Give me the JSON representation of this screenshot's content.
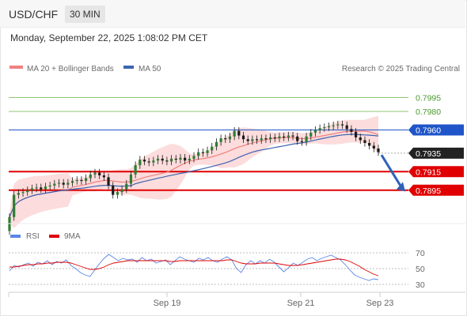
{
  "header": {
    "symbol": "USD/CHF",
    "timeframe": "30 MIN"
  },
  "timestamp": "Monday, September 22, 2025 1:08:02 PM CET",
  "legend": {
    "ma20": "MA 20 + Bollinger Bands",
    "ma50": "MA 50",
    "credit": "Research © 2025 Trading Central"
  },
  "rsi_legend": {
    "rsi": "RSI",
    "ma": "9MA"
  },
  "colors": {
    "ma20": "#f08080",
    "bollinger": "#fbd6d6",
    "ma50": "#3d64b0",
    "resistance": "#7fbf5f",
    "pivot": "#1f55c8",
    "support": "#e00000",
    "current": "#222222",
    "rsi": "#5b86e5",
    "rsi_ma": "#e00000",
    "candle": "#2e7d32",
    "arrow": "#2f62b8"
  },
  "chart_data": {
    "type": "candlestick",
    "price_ylim": [
      0.7859,
      0.8015
    ],
    "x_ticks": [
      "Sep 19",
      "Sep 21",
      "Sep 23"
    ],
    "levels": [
      {
        "value": 0.7995,
        "label": "0.7995",
        "kind": "resistance"
      },
      {
        "value": 0.798,
        "label": "0.7980",
        "kind": "resistance"
      },
      {
        "value": 0.796,
        "label": "0.7960",
        "kind": "pivot"
      },
      {
        "value": 0.7935,
        "label": "0.7935",
        "kind": "current"
      },
      {
        "value": 0.7915,
        "label": "0.7915",
        "kind": "support"
      },
      {
        "value": 0.7895,
        "label": "0.7895",
        "kind": "support"
      }
    ],
    "forecast_arrow": {
      "from": 0.7933,
      "to": 0.7897
    },
    "price": [
      0.7866,
      0.789,
      0.7892,
      0.7893,
      0.7895,
      0.7897,
      0.7898,
      0.7896,
      0.7899,
      0.79,
      0.7902,
      0.7903,
      0.7901,
      0.7903,
      0.7905,
      0.7906,
      0.7905,
      0.7908,
      0.7912,
      0.7914,
      0.7911,
      0.7909,
      0.79,
      0.789,
      0.7893,
      0.7896,
      0.7902,
      0.7912,
      0.7922,
      0.7928,
      0.7926,
      0.7925,
      0.7927,
      0.7929,
      0.7927,
      0.7926,
      0.7929,
      0.7928,
      0.793,
      0.7927,
      0.7929,
      0.7932,
      0.7936,
      0.7935,
      0.7938,
      0.7942,
      0.7947,
      0.7951,
      0.795,
      0.7953,
      0.7959,
      0.7954,
      0.795,
      0.7948,
      0.795,
      0.7949,
      0.7951,
      0.795,
      0.7952,
      0.7951,
      0.7953,
      0.7952,
      0.7954,
      0.7953,
      0.7948,
      0.7947,
      0.7953,
      0.7957,
      0.796,
      0.7962,
      0.7963,
      0.7964,
      0.7965,
      0.7966,
      0.7965,
      0.7961,
      0.7958,
      0.7952,
      0.7949,
      0.7946,
      0.7943,
      0.794,
      0.7936
    ],
    "rsi_ylim": [
      25,
      75
    ],
    "rsi_levels": [
      70,
      50,
      30
    ],
    "rsi": [
      47,
      54,
      52,
      55,
      57,
      53,
      58,
      56,
      60,
      55,
      59,
      57,
      61,
      54,
      50,
      45,
      42,
      40,
      48,
      56,
      63,
      68,
      64,
      60,
      63,
      61,
      62,
      58,
      64,
      60,
      62,
      57,
      59,
      61,
      55,
      60,
      65,
      62,
      60,
      58,
      63,
      61,
      64,
      60,
      58,
      62,
      65,
      61,
      50,
      45,
      55,
      60,
      56,
      60,
      57,
      62,
      58,
      52,
      46,
      51,
      57,
      54,
      58,
      62,
      64,
      60,
      63,
      65,
      67,
      64,
      61,
      55,
      48,
      42,
      39,
      37,
      35,
      37,
      36
    ],
    "rsi_ma": [
      52,
      52,
      53,
      54,
      55,
      55,
      56,
      56,
      57,
      57,
      58,
      58,
      58,
      57,
      55,
      53,
      51,
      49,
      49,
      50,
      52,
      55,
      57,
      58,
      59,
      60,
      60,
      60,
      60,
      60,
      60,
      60,
      60,
      60,
      59,
      59,
      60,
      60,
      60,
      60,
      60,
      60,
      60,
      60,
      60,
      60,
      61,
      61,
      59,
      57,
      56,
      56,
      56,
      57,
      57,
      57,
      57,
      56,
      55,
      54,
      54,
      54,
      55,
      56,
      57,
      58,
      59,
      60,
      61,
      62,
      62,
      61,
      59,
      56,
      53,
      49,
      46,
      43,
      41
    ]
  }
}
